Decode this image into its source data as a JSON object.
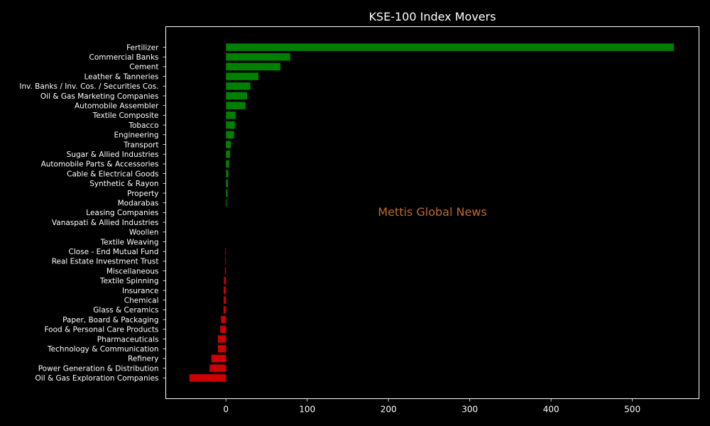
{
  "chart_data": {
    "type": "bar",
    "orientation": "horizontal",
    "title": "KSE-100 Index Movers",
    "xlabel": "",
    "ylabel": "",
    "xlim": [
      -74,
      582
    ],
    "xticks": [
      0,
      100,
      200,
      300,
      400,
      500
    ],
    "grid": false,
    "categories": [
      "Fertilizer",
      "Commercial Banks",
      "Cement",
      "Leather & Tanneries",
      "Inv. Banks / Inv. Cos. / Securities Cos.",
      "Oil & Gas Marketing Companies",
      "Automobile Assembler",
      "Textile Composite",
      "Tobacco",
      "Engineering",
      "Transport",
      "Sugar & Allied Industries",
      "Automobile Parts & Accessories",
      "Cable & Electrical Goods",
      "Synthetic & Rayon",
      "Property",
      "Modarabas",
      "Leasing Companies",
      "Vanaspati & Allied Industries",
      "Woollen",
      "Textile Weaving",
      "Close - End Mutual Fund",
      "Real Estate Investment Trust",
      "Miscellaneous",
      "Textile Spinning",
      "Insurance",
      "Chemical",
      "Glass & Ceramics",
      "Paper, Board & Packaging",
      "Food & Personal Care Products",
      "Pharmaceuticals",
      "Technology & Communication",
      "Refinery",
      "Power Generation & Distribution",
      "Oil & Gas Exploration Companies"
    ],
    "values": [
      551,
      79,
      67,
      40,
      30,
      26,
      24,
      12,
      11,
      10,
      6,
      5,
      4,
      3,
      2.5,
      2,
      1,
      0,
      0,
      0,
      0,
      -0.8,
      -0.8,
      -1.2,
      -2.5,
      -2.8,
      -2.8,
      -3,
      -6,
      -7,
      -10,
      -10,
      -18,
      -20,
      -45
    ],
    "colors": {
      "positive": "#008000",
      "negative": "#cc0000",
      "background": "#000000",
      "text": "#ffffff",
      "axes": "#ffffff",
      "watermark": "#c0692a"
    },
    "watermark": "Mettis Global News"
  }
}
